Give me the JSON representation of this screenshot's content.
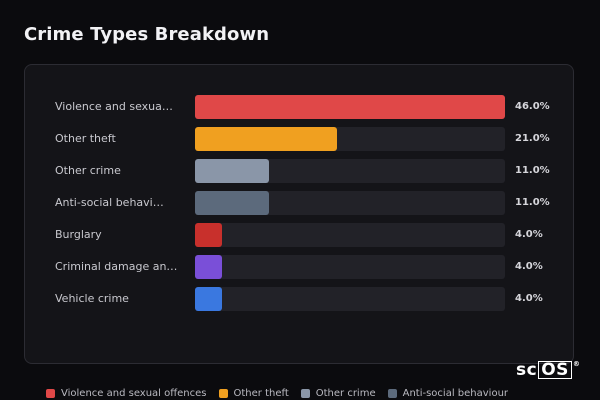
{
  "title": "Crime Types Breakdown",
  "logo": {
    "text": "sc",
    "boxed": "OS",
    "mark": "®"
  },
  "chart_data": {
    "type": "bar",
    "orientation": "horizontal",
    "title": "Crime Types Breakdown",
    "categories": [
      "Violence and sexua…",
      "Other theft",
      "Other crime",
      "Anti-social behavi…",
      "Burglary",
      "Criminal damage an…",
      "Vehicle crime"
    ],
    "values": [
      46.0,
      21.0,
      11.0,
      11.0,
      4.0,
      4.0,
      4.0
    ],
    "value_labels": [
      "46.0%",
      "21.0%",
      "11.0%",
      "11.0%",
      "4.0%",
      "4.0%",
      "4.0%"
    ],
    "unit": "%",
    "xlim": [
      0,
      46.0
    ],
    "colors": [
      "#e04848",
      "#f0a020",
      "#8a96a8",
      "#5c6a7c",
      "#c8302c",
      "#7a4fd8",
      "#3a78e0"
    ],
    "grid": false,
    "legend": {
      "placement": "bottom",
      "entries": [
        {
          "label": "Violence and sexual offences",
          "color": "#e04848"
        },
        {
          "label": "Other theft",
          "color": "#f0a020"
        },
        {
          "label": "Other crime",
          "color": "#8a96a8"
        },
        {
          "label": "Anti-social behaviour",
          "color": "#5c6a7c"
        }
      ]
    }
  }
}
